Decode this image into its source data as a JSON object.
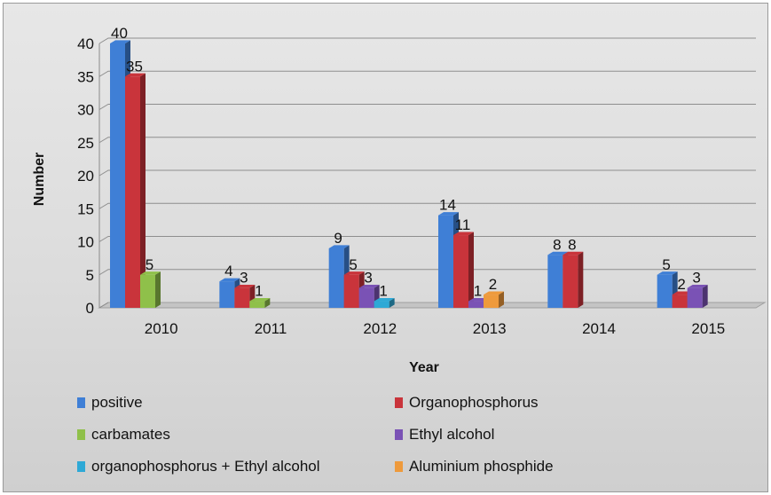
{
  "chart_data": {
    "type": "bar",
    "title": "",
    "xlabel": "Year",
    "ylabel": "Number",
    "ylim": [
      0,
      40
    ],
    "yticks": [
      0,
      5,
      10,
      15,
      20,
      25,
      30,
      35,
      40
    ],
    "categories": [
      "2010",
      "2011",
      "2012",
      "2013",
      "2014",
      "2015"
    ],
    "grid": true,
    "legend_position": "bottom",
    "series": [
      {
        "name": "positive",
        "color": "#3f7fd6",
        "values": [
          40,
          4,
          9,
          14,
          8,
          5
        ]
      },
      {
        "name": "Organophosphorus",
        "color": "#c9343b",
        "values": [
          35,
          3,
          5,
          11,
          8,
          2
        ]
      },
      {
        "name": "carbamates",
        "color": "#8fc04a",
        "values": [
          5,
          1,
          null,
          null,
          null,
          null
        ]
      },
      {
        "name": "Ethyl alcohol",
        "color": "#7a52b5",
        "values": [
          null,
          null,
          3,
          1,
          null,
          3
        ]
      },
      {
        "name": "organophosphorus + Ethyl alcohol",
        "color": "#2ea9d6",
        "values": [
          null,
          null,
          1,
          null,
          null,
          null
        ]
      },
      {
        "name": "Aluminium phosphide",
        "color": "#ee9a3c",
        "values": [
          null,
          null,
          null,
          2,
          null,
          null
        ]
      }
    ]
  }
}
